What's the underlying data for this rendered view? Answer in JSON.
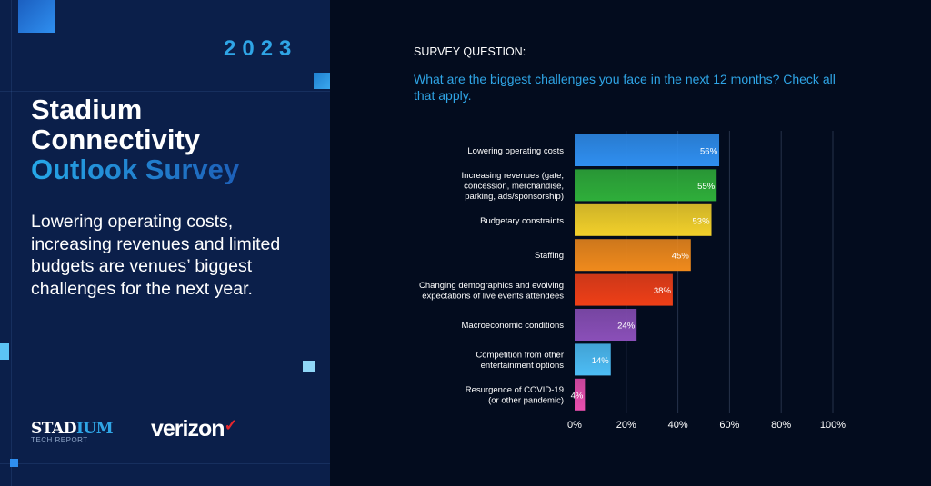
{
  "left_panel": {
    "year": "2023",
    "title_line1": "Stadium",
    "title_line2": "Connectivity",
    "title_line3": "Outlook Survey",
    "subtitle": "Lowering operating costs, increasing revenues and limited budgets are venues’ biggest challenges for the next year.",
    "logo_stadium": "STADIUM",
    "logo_stadium_sub": "TECH REPORT",
    "logo_verizon": "verizon"
  },
  "colors": {
    "panel_bg": "#0b1f4a",
    "page_bg": "#030c1e",
    "accent": "#2fa5e6"
  },
  "survey": {
    "label": "SURVEY QUESTION:",
    "question": "What are the biggest challenges you face in the next 12 months? Check all that apply."
  },
  "chart_data": {
    "type": "bar",
    "orientation": "horizontal",
    "categories": [
      "Lowering operating costs",
      "Increasing revenues (gate, concession, merchandise, parking, ads/sponsorship)",
      "Budgetary constraints",
      "Staffing",
      "Changing demographics and evolving expectations of live events attendees",
      "Macroeconomic conditions",
      "Competition from other entertainment options",
      "Resurgence of COVID-19 (or other pandemic)"
    ],
    "category_lines": [
      [
        "Lowering operating costs"
      ],
      [
        "Increasing revenues (gate,",
        "concession, merchandise,",
        "parking, ads/sponsorship)"
      ],
      [
        "Budgetary constraints"
      ],
      [
        "Staffing"
      ],
      [
        "Changing demographics and evolving",
        "expectations of live events attendees"
      ],
      [
        "Macroeconomic conditions"
      ],
      [
        "Competition from other",
        "entertainment options"
      ],
      [
        "Resurgence of COVID-19",
        "(or other pandemic)"
      ]
    ],
    "values": [
      56,
      55,
      53,
      45,
      38,
      24,
      14,
      4
    ],
    "data_labels": [
      "56%",
      "55%",
      "53%",
      "45%",
      "38%",
      "24%",
      "14%",
      "4%"
    ],
    "bar_colors": [
      "#2f8ff0",
      "#2fae3a",
      "#f2d02a",
      "#f08a1c",
      "#ef3f17",
      "#8a4fb8",
      "#4dbdf5",
      "#e84fae"
    ],
    "xlim": [
      0,
      100
    ],
    "xticks": [
      "0%",
      "20%",
      "40%",
      "60%",
      "80%",
      "100%"
    ],
    "grid": true
  }
}
